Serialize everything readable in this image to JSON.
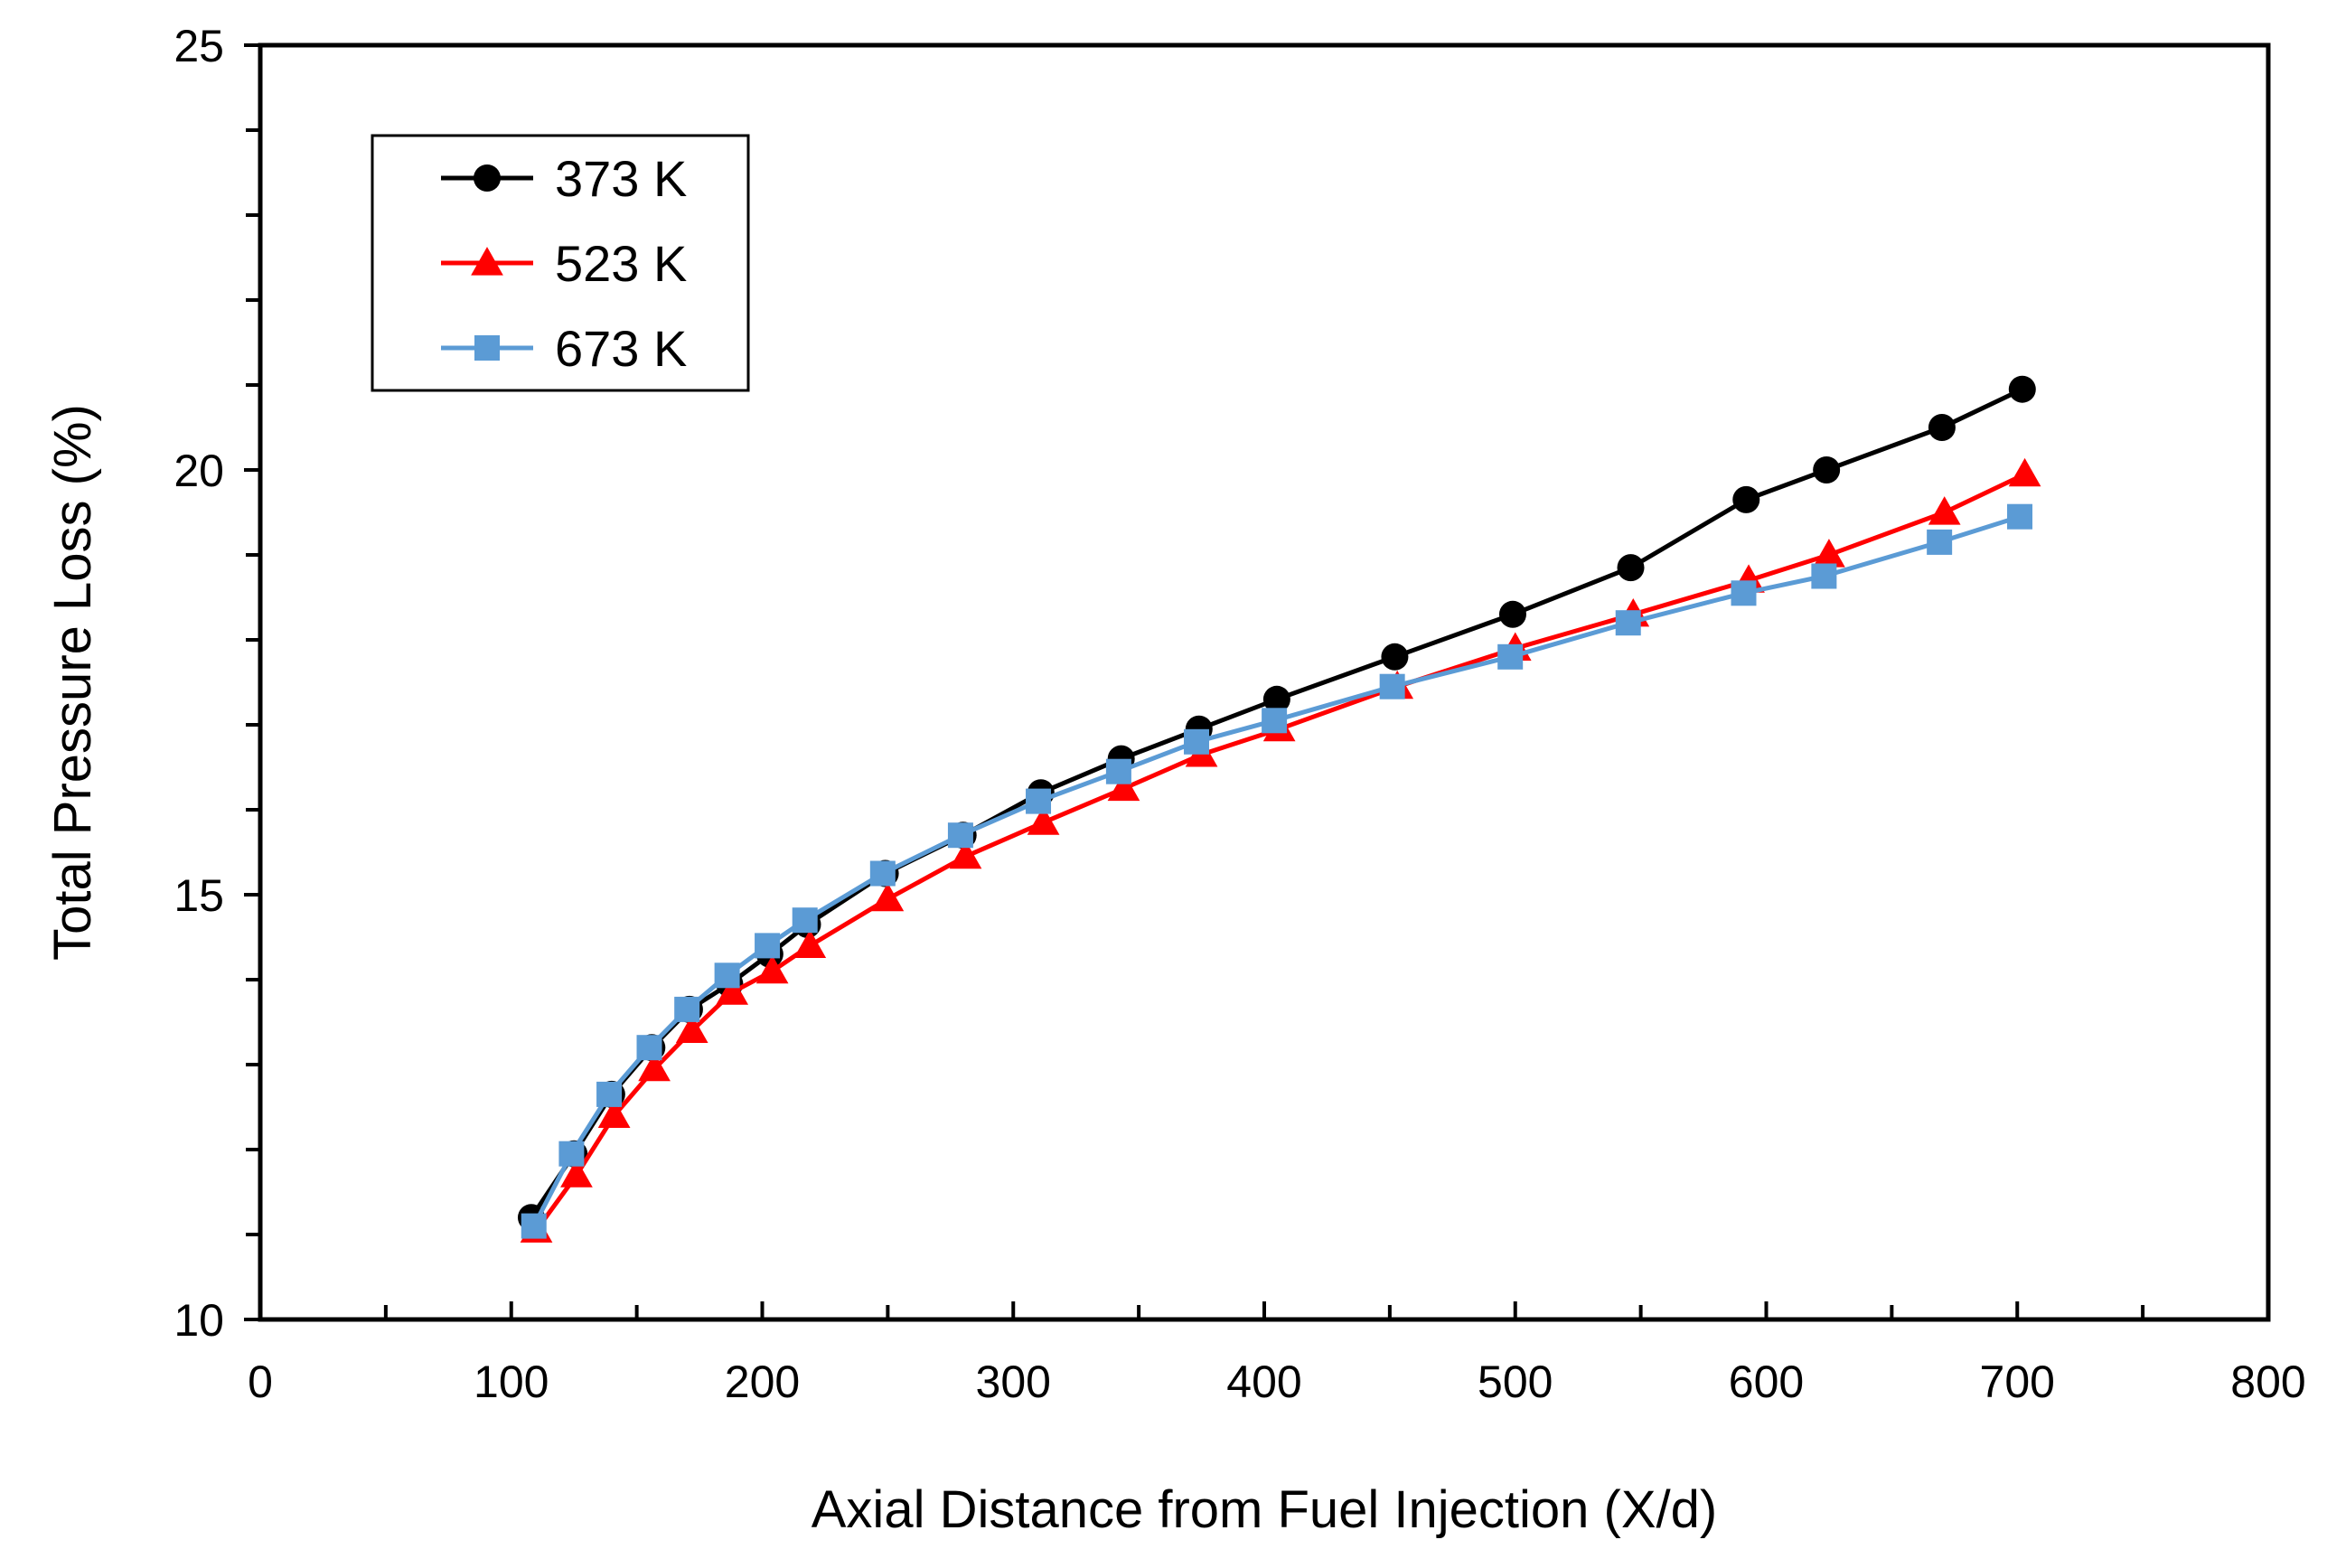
{
  "chart_data": {
    "type": "line",
    "title": "",
    "xlabel": "Axial Distance from Fuel Injection (X/d)",
    "ylabel": "Total Pressure Loss (%)",
    "xlim": [
      0,
      800
    ],
    "ylim": [
      10,
      25
    ],
    "x_major_ticks": [
      0,
      100,
      200,
      300,
      400,
      500,
      600,
      700,
      800
    ],
    "x_minor_step": 50,
    "y_major_ticks": [
      10,
      15,
      20,
      25
    ],
    "y_minor_step": 1,
    "grid": false,
    "legend_position": "top-left",
    "series": [
      {
        "name": "373 K",
        "color": "#000000",
        "marker": "circle",
        "points": [
          [
            108,
            11.2
          ],
          [
            125,
            11.95
          ],
          [
            140,
            12.65
          ],
          [
            156,
            13.2
          ],
          [
            171,
            13.65
          ],
          [
            187,
            13.95
          ],
          [
            203,
            14.3
          ],
          [
            218,
            14.65
          ],
          [
            249,
            15.25
          ],
          [
            280,
            15.7
          ],
          [
            311,
            16.2
          ],
          [
            343,
            16.6
          ],
          [
            374,
            16.95
          ],
          [
            405,
            17.3
          ],
          [
            452,
            17.8
          ],
          [
            499,
            18.3
          ],
          [
            546,
            18.85
          ],
          [
            592,
            19.65
          ],
          [
            624,
            20.0
          ],
          [
            670,
            20.5
          ],
          [
            702,
            20.95
          ]
        ]
      },
      {
        "name": "523 K",
        "color": "#ff0000",
        "marker": "triangle",
        "points": [
          [
            110,
            11.05
          ],
          [
            126,
            11.7
          ],
          [
            141,
            12.4
          ],
          [
            157,
            12.95
          ],
          [
            172,
            13.4
          ],
          [
            188,
            13.85
          ],
          [
            204,
            14.1
          ],
          [
            219,
            14.4
          ],
          [
            250,
            14.95
          ],
          [
            281,
            15.45
          ],
          [
            312,
            15.85
          ],
          [
            344,
            16.25
          ],
          [
            375,
            16.65
          ],
          [
            406,
            16.95
          ],
          [
            453,
            17.45
          ],
          [
            500,
            17.9
          ],
          [
            547,
            18.3
          ],
          [
            593,
            18.7
          ],
          [
            625,
            19.0
          ],
          [
            671,
            19.5
          ],
          [
            703,
            19.95
          ]
        ]
      },
      {
        "name": "673 K",
        "color": "#5b9bd5",
        "marker": "square",
        "points": [
          [
            109,
            11.1
          ],
          [
            124,
            11.95
          ],
          [
            139,
            12.65
          ],
          [
            155,
            13.2
          ],
          [
            170,
            13.65
          ],
          [
            186,
            14.05
          ],
          [
            202,
            14.4
          ],
          [
            217,
            14.7
          ],
          [
            248,
            15.25
          ],
          [
            279,
            15.7
          ],
          [
            310,
            16.1
          ],
          [
            342,
            16.45
          ],
          [
            373,
            16.8
          ],
          [
            404,
            17.05
          ],
          [
            451,
            17.45
          ],
          [
            498,
            17.8
          ],
          [
            545,
            18.2
          ],
          [
            591,
            18.55
          ],
          [
            623,
            18.75
          ],
          [
            669,
            19.15
          ],
          [
            701,
            19.45
          ]
        ]
      }
    ]
  }
}
